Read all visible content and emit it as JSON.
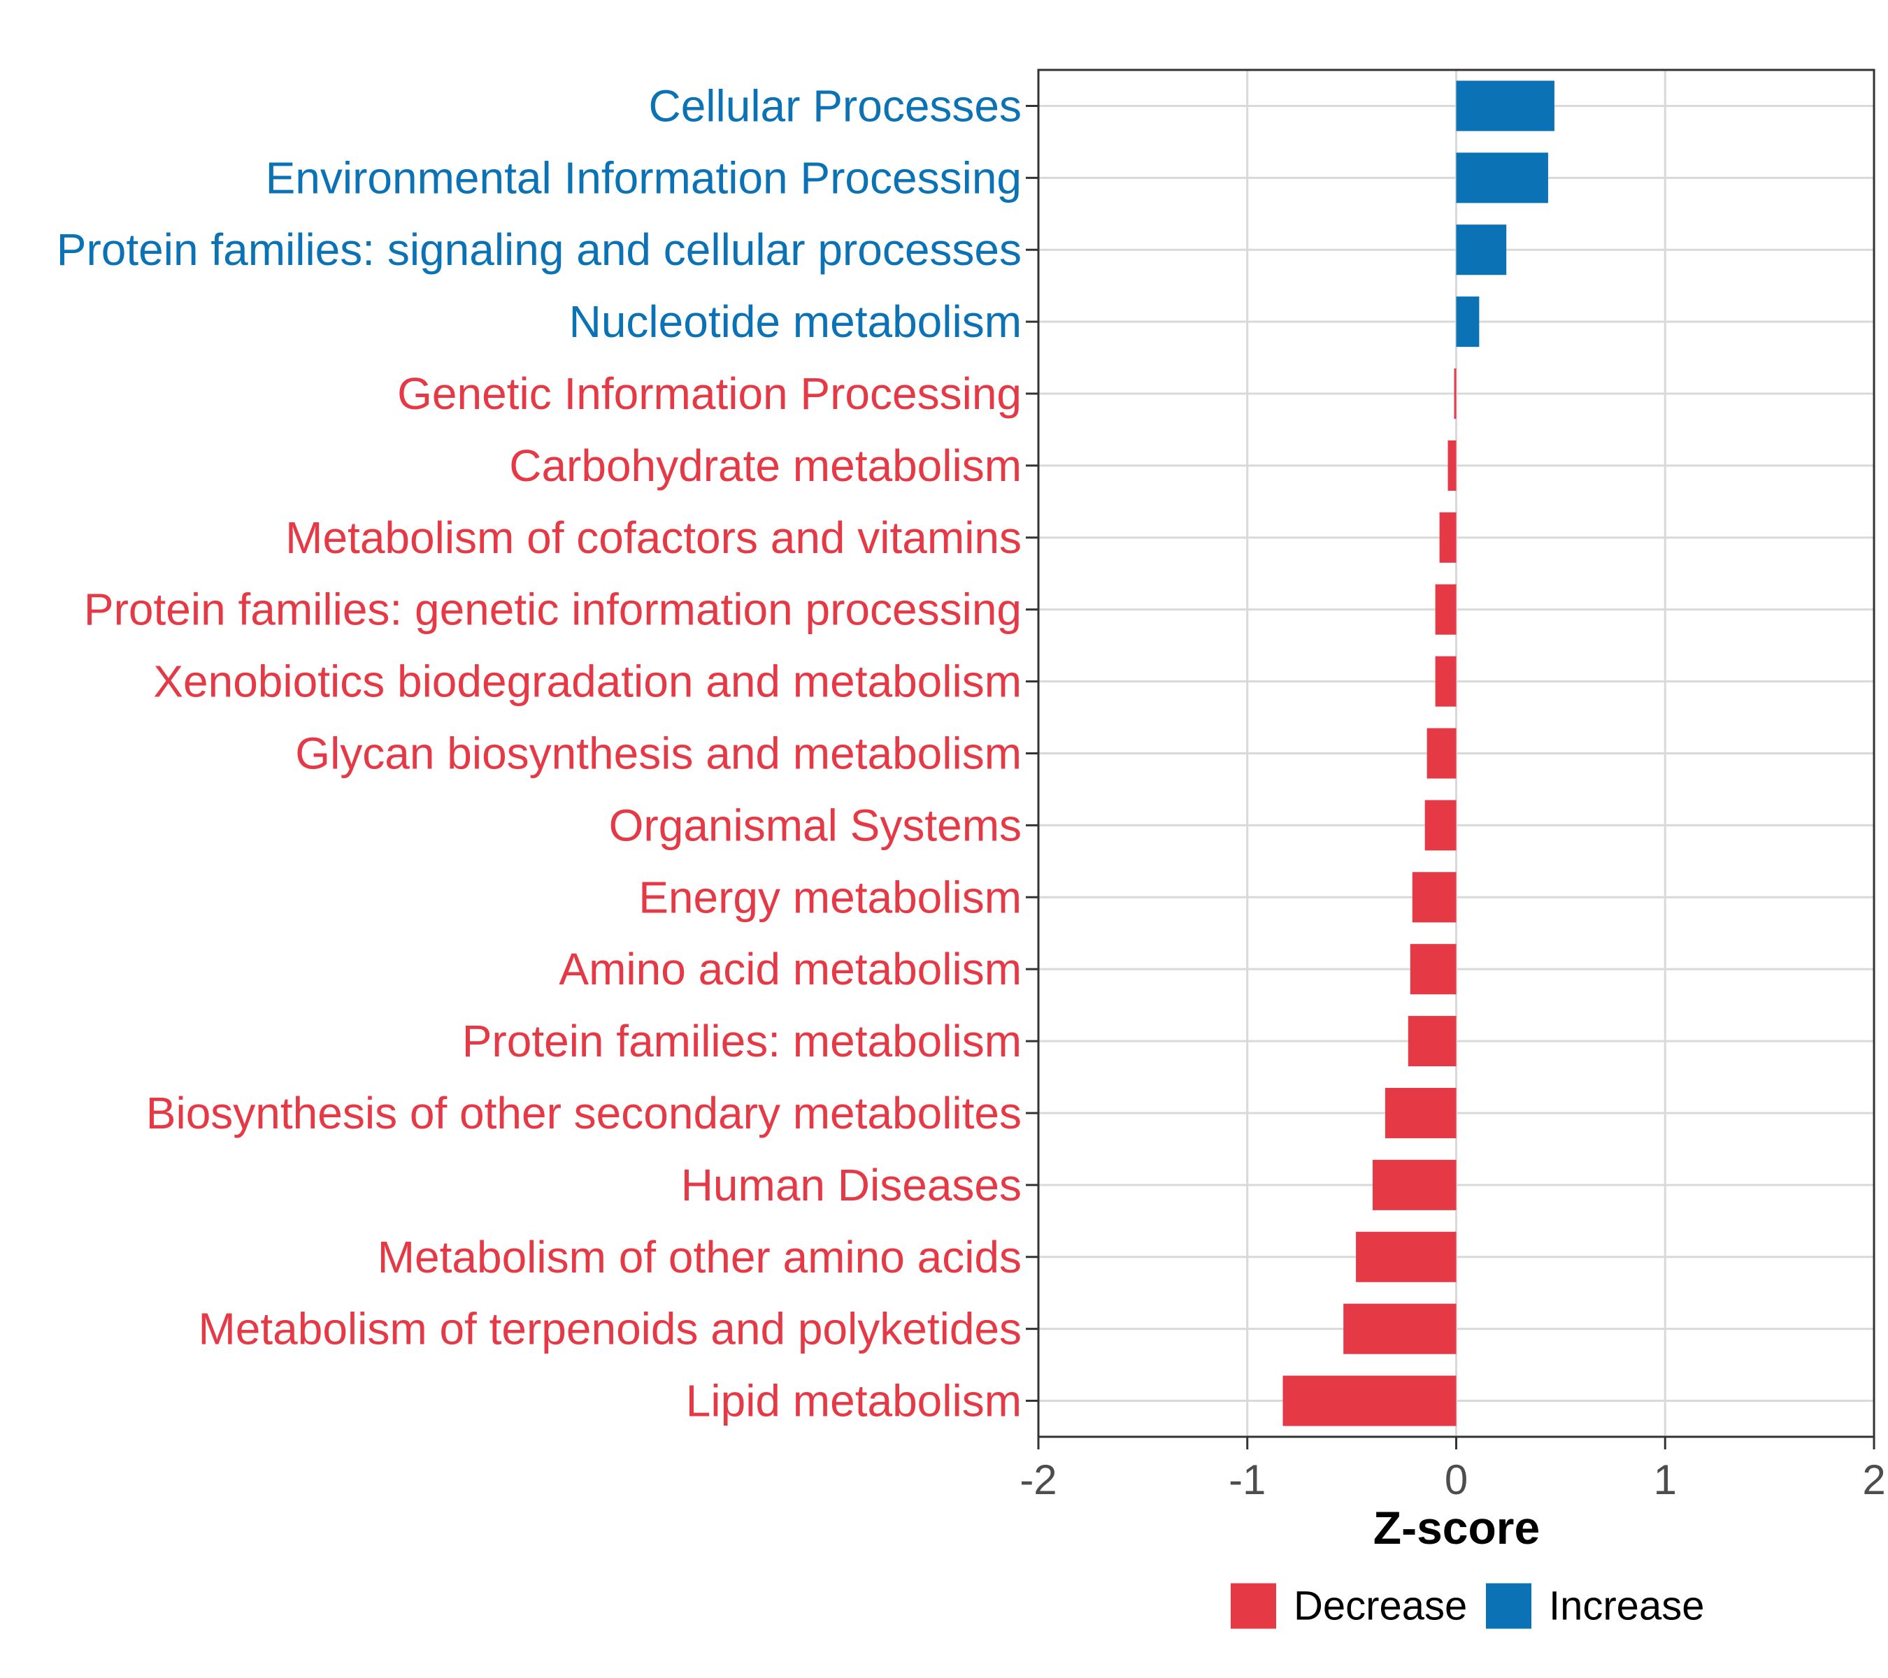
{
  "colors": {
    "decrease": "#e63946",
    "increase": "#0a72b5",
    "grid": "#d9d9d9",
    "axis": "#333333",
    "tick_text": "#4d4d4d"
  },
  "chart_data": {
    "type": "bar",
    "orientation": "horizontal",
    "title": "",
    "xlabel": "Z-score",
    "ylabel": "",
    "xlim": [
      -2,
      2
    ],
    "x_ticks": [
      -2,
      -1,
      0,
      1,
      2
    ],
    "x_tick_labels": [
      "-2",
      "-1",
      "0",
      "1",
      "2"
    ],
    "grid": true,
    "legend_position": "bottom",
    "categories": [
      "Cellular Processes",
      "Environmental Information Processing",
      "Protein families: signaling and cellular processes",
      "Nucleotide metabolism",
      "Genetic Information Processing",
      "Carbohydrate metabolism",
      "Metabolism of cofactors and vitamins",
      "Protein families: genetic information processing",
      "Xenobiotics biodegradation and metabolism",
      "Glycan biosynthesis and metabolism",
      "Organismal Systems",
      "Energy metabolism",
      "Amino acid metabolism",
      "Protein families: metabolism",
      "Biosynthesis of other secondary metabolites",
      "Human Diseases",
      "Metabolism of other amino acids",
      "Metabolism of terpenoids and polyketides",
      "Lipid metabolism"
    ],
    "values": [
      0.47,
      0.44,
      0.24,
      0.11,
      -0.01,
      -0.04,
      -0.08,
      -0.1,
      -0.1,
      -0.14,
      -0.15,
      -0.21,
      -0.22,
      -0.23,
      -0.34,
      -0.4,
      -0.48,
      -0.54,
      -0.83
    ],
    "groups": [
      "Increase",
      "Increase",
      "Increase",
      "Increase",
      "Decrease",
      "Decrease",
      "Decrease",
      "Decrease",
      "Decrease",
      "Decrease",
      "Decrease",
      "Decrease",
      "Decrease",
      "Decrease",
      "Decrease",
      "Decrease",
      "Decrease",
      "Decrease",
      "Decrease"
    ],
    "legend": [
      {
        "name": "Decrease",
        "key": "decrease"
      },
      {
        "name": "Increase",
        "key": "increase"
      }
    ]
  }
}
